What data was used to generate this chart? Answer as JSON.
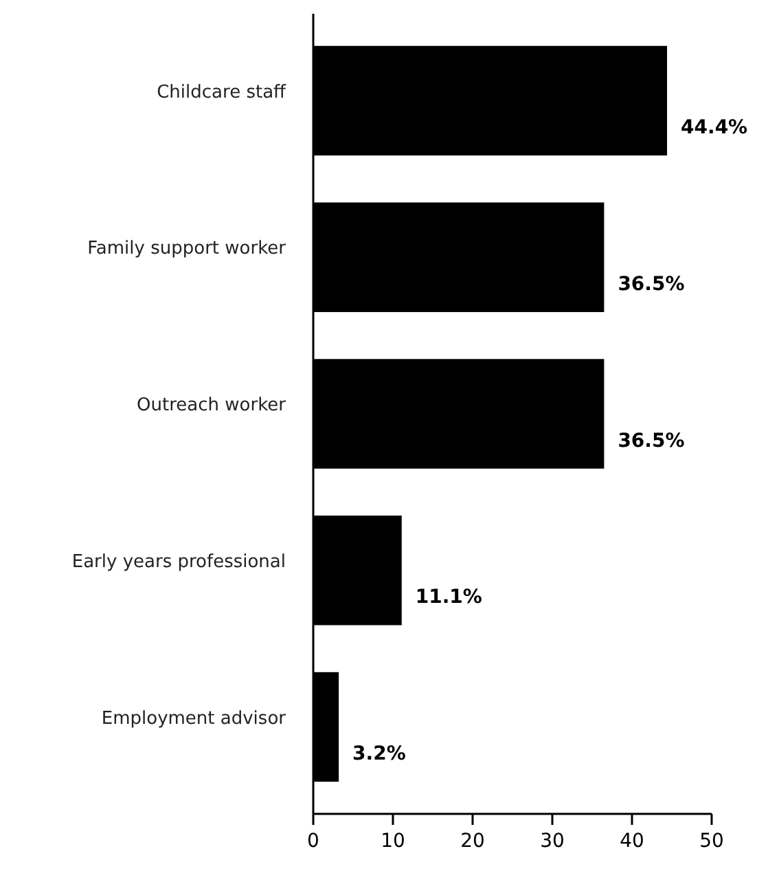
{
  "chart_data": {
    "type": "bar",
    "orientation": "horizontal",
    "categories": [
      "Childcare staff",
      "Family support worker",
      "Outreach worker",
      "Early years professional",
      "Employment advisor"
    ],
    "values": [
      44.4,
      36.5,
      36.5,
      11.1,
      3.2
    ],
    "color": "#000000",
    "value_labels": [
      "44.4%",
      "36.5%",
      "36.5%",
      "11.1%",
      "3.2%"
    ],
    "xlim": [
      0,
      50
    ],
    "xticks": [
      0,
      10,
      20,
      30,
      40,
      50
    ],
    "grid": false
  }
}
